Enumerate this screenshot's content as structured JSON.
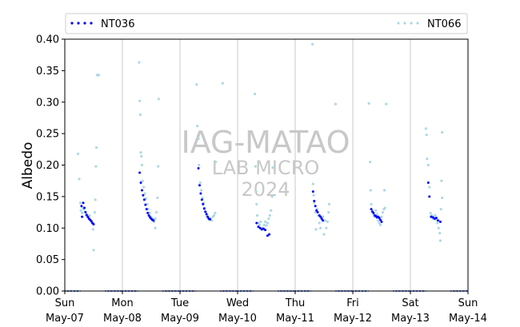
{
  "chart_data": {
    "type": "scatter",
    "ylabel": "Albedo",
    "ylim": [
      0,
      0.4
    ],
    "yticks": [
      "0.00",
      "0.05",
      "0.10",
      "0.15",
      "0.20",
      "0.25",
      "0.30",
      "0.35",
      "0.40"
    ],
    "xlim": [
      0,
      7
    ],
    "xticks": [
      {
        "day": "Sun",
        "date": "May-07"
      },
      {
        "day": "Mon",
        "date": "May-08"
      },
      {
        "day": "Tue",
        "date": "May-09"
      },
      {
        "day": "Wed",
        "date": "May-10"
      },
      {
        "day": "Thu",
        "date": "May-11"
      },
      {
        "day": "Fri",
        "date": "May-12"
      },
      {
        "day": "Sat",
        "date": "May-13"
      },
      {
        "day": "Sun",
        "date": "May-14"
      }
    ],
    "legend_position": "top",
    "grid": "vertical",
    "watermark": [
      "IAG-MATAO",
      "LAB MICRO",
      "2024"
    ],
    "series": [
      {
        "name": "NT036",
        "color": "#0000ff",
        "marker": "dot",
        "points": [
          [
            0.29,
            0.135
          ],
          [
            0.3,
            0.118
          ],
          [
            0.32,
            0.14
          ],
          [
            0.34,
            0.132
          ],
          [
            0.36,
            0.125
          ],
          [
            0.38,
            0.121
          ],
          [
            0.4,
            0.118
          ],
          [
            0.42,
            0.115
          ],
          [
            0.44,
            0.113
          ],
          [
            0.46,
            0.111
          ],
          [
            0.48,
            0.108
          ],
          [
            0.5,
            0.106
          ],
          [
            1.3,
            0.188
          ],
          [
            1.32,
            0.172
          ],
          [
            1.34,
            0.16
          ],
          [
            1.36,
            0.152
          ],
          [
            1.38,
            0.145
          ],
          [
            1.4,
            0.137
          ],
          [
            1.42,
            0.13
          ],
          [
            1.44,
            0.124
          ],
          [
            1.46,
            0.12
          ],
          [
            1.48,
            0.117
          ],
          [
            1.5,
            0.115
          ],
          [
            1.52,
            0.113
          ],
          [
            1.54,
            0.112
          ],
          [
            2.32,
            0.195
          ],
          [
            2.34,
            0.168
          ],
          [
            2.36,
            0.155
          ],
          [
            2.38,
            0.145
          ],
          [
            2.4,
            0.138
          ],
          [
            2.42,
            0.131
          ],
          [
            2.44,
            0.126
          ],
          [
            2.46,
            0.122
          ],
          [
            2.48,
            0.118
          ],
          [
            2.5,
            0.115
          ],
          [
            2.52,
            0.114
          ],
          [
            3.33,
            0.108
          ],
          [
            3.36,
            0.102
          ],
          [
            3.39,
            0.1
          ],
          [
            3.42,
            0.098
          ],
          [
            3.45,
            0.099
          ],
          [
            3.48,
            0.097
          ],
          [
            3.52,
            0.088
          ],
          [
            3.55,
            0.09
          ],
          [
            4.31,
            0.158
          ],
          [
            4.33,
            0.143
          ],
          [
            4.35,
            0.135
          ],
          [
            4.37,
            0.128
          ],
          [
            4.39,
            0.125
          ],
          [
            4.42,
            0.12
          ],
          [
            4.44,
            0.118
          ],
          [
            4.46,
            0.115
          ],
          [
            4.48,
            0.112
          ],
          [
            5.32,
            0.13
          ],
          [
            5.34,
            0.126
          ],
          [
            5.36,
            0.124
          ],
          [
            5.38,
            0.12
          ],
          [
            5.4,
            0.119
          ],
          [
            5.42,
            0.117
          ],
          [
            5.44,
            0.118
          ],
          [
            5.46,
            0.116
          ],
          [
            5.48,
            0.113
          ],
          [
            5.5,
            0.11
          ],
          [
            6.31,
            0.172
          ],
          [
            6.33,
            0.15
          ],
          [
            6.36,
            0.118
          ],
          [
            6.39,
            0.117
          ],
          [
            6.42,
            0.115
          ],
          [
            6.45,
            0.116
          ],
          [
            6.48,
            0.112
          ],
          [
            6.52,
            0.11
          ]
        ]
      },
      {
        "name": "NT066",
        "color": "#add8e6",
        "marker": "dot",
        "points": [
          [
            0.23,
            0.218
          ],
          [
            0.25,
            0.178
          ],
          [
            0.27,
            0.14
          ],
          [
            0.28,
            0.128
          ],
          [
            0.3,
            0.124
          ],
          [
            0.31,
            0.132
          ],
          [
            0.33,
            0.13
          ],
          [
            0.35,
            0.126
          ],
          [
            0.37,
            0.12
          ],
          [
            0.39,
            0.118
          ],
          [
            0.41,
            0.116
          ],
          [
            0.43,
            0.12
          ],
          [
            0.45,
            0.112
          ],
          [
            0.47,
            0.109
          ],
          [
            0.49,
            0.098
          ],
          [
            0.5,
            0.065
          ],
          [
            0.52,
            0.125
          ],
          [
            0.53,
            0.145
          ],
          [
            0.54,
            0.198
          ],
          [
            0.55,
            0.228
          ],
          [
            0.56,
            0.343
          ],
          [
            0.57,
            0.343
          ],
          [
            0.58,
            0.343
          ],
          [
            0.59,
            0.343
          ],
          [
            1.29,
            0.363
          ],
          [
            1.3,
            0.302
          ],
          [
            1.31,
            0.28
          ],
          [
            1.32,
            0.22
          ],
          [
            1.33,
            0.214
          ],
          [
            1.34,
            0.2
          ],
          [
            1.35,
            0.175
          ],
          [
            1.37,
            0.165
          ],
          [
            1.39,
            0.155
          ],
          [
            1.41,
            0.147
          ],
          [
            1.43,
            0.138
          ],
          [
            1.45,
            0.13
          ],
          [
            1.47,
            0.124
          ],
          [
            1.49,
            0.118
          ],
          [
            1.51,
            0.116
          ],
          [
            1.53,
            0.113
          ],
          [
            1.55,
            0.11
          ],
          [
            1.57,
            0.115
          ],
          [
            1.59,
            0.125
          ],
          [
            1.61,
            0.148
          ],
          [
            1.62,
            0.198
          ],
          [
            1.63,
            0.305
          ],
          [
            1.57,
            0.1
          ],
          [
            2.29,
            0.328
          ],
          [
            2.3,
            0.262
          ],
          [
            2.32,
            0.242
          ],
          [
            2.33,
            0.2
          ],
          [
            2.35,
            0.172
          ],
          [
            2.37,
            0.16
          ],
          [
            2.39,
            0.148
          ],
          [
            2.41,
            0.14
          ],
          [
            2.43,
            0.132
          ],
          [
            2.45,
            0.125
          ],
          [
            2.47,
            0.12
          ],
          [
            2.49,
            0.116
          ],
          [
            2.51,
            0.113
          ],
          [
            2.53,
            0.115
          ],
          [
            2.55,
            0.112
          ],
          [
            2.57,
            0.118
          ],
          [
            2.59,
            0.12
          ],
          [
            2.61,
            0.124
          ],
          [
            2.62,
            0.205
          ],
          [
            2.74,
            0.33
          ],
          [
            3.3,
            0.313
          ],
          [
            3.31,
            0.198
          ],
          [
            3.32,
            0.158
          ],
          [
            3.33,
            0.138
          ],
          [
            3.34,
            0.12
          ],
          [
            3.36,
            0.108
          ],
          [
            3.38,
            0.105
          ],
          [
            3.4,
            0.11
          ],
          [
            3.42,
            0.1
          ],
          [
            3.44,
            0.098
          ],
          [
            3.46,
            0.105
          ],
          [
            3.48,
            0.11
          ],
          [
            3.5,
            0.104
          ],
          [
            3.52,
            0.108
          ],
          [
            3.54,
            0.115
          ],
          [
            3.56,
            0.12
          ],
          [
            3.58,
            0.128
          ],
          [
            3.6,
            0.15
          ],
          [
            3.61,
            0.196
          ],
          [
            4.3,
            0.392
          ],
          [
            4.31,
            0.17
          ],
          [
            4.32,
            0.152
          ],
          [
            4.33,
            0.14
          ],
          [
            4.35,
            0.125
          ],
          [
            4.36,
            0.098
          ],
          [
            4.38,
            0.13
          ],
          [
            4.4,
            0.12
          ],
          [
            4.42,
            0.108
          ],
          [
            4.44,
            0.1
          ],
          [
            4.46,
            0.115
          ],
          [
            4.48,
            0.118
          ],
          [
            4.5,
            0.09
          ],
          [
            4.52,
            0.112
          ],
          [
            4.54,
            0.1
          ],
          [
            4.56,
            0.11
          ],
          [
            4.58,
            0.125
          ],
          [
            4.59,
            0.138
          ],
          [
            4.7,
            0.297
          ],
          [
            5.28,
            0.298
          ],
          [
            5.3,
            0.205
          ],
          [
            5.31,
            0.16
          ],
          [
            5.32,
            0.138
          ],
          [
            5.34,
            0.128
          ],
          [
            5.36,
            0.122
          ],
          [
            5.38,
            0.118
          ],
          [
            5.4,
            0.128
          ],
          [
            5.42,
            0.122
          ],
          [
            5.44,
            0.112
          ],
          [
            5.46,
            0.108
          ],
          [
            5.48,
            0.105
          ],
          [
            5.5,
            0.118
          ],
          [
            5.52,
            0.125
          ],
          [
            5.54,
            0.13
          ],
          [
            5.55,
            0.16
          ],
          [
            5.56,
            0.132
          ],
          [
            5.58,
            0.297
          ],
          [
            6.27,
            0.258
          ],
          [
            6.28,
            0.248
          ],
          [
            6.29,
            0.21
          ],
          [
            6.31,
            0.2
          ],
          [
            6.33,
            0.165
          ],
          [
            6.35,
            0.124
          ],
          [
            6.37,
            0.12
          ],
          [
            6.39,
            0.115
          ],
          [
            6.41,
            0.118
          ],
          [
            6.43,
            0.12
          ],
          [
            6.45,
            0.113
          ],
          [
            6.47,
            0.108
          ],
          [
            6.49,
            0.1
          ],
          [
            6.51,
            0.092
          ],
          [
            6.52,
            0.08
          ],
          [
            6.53,
            0.13
          ],
          [
            6.54,
            0.175
          ],
          [
            6.55,
            0.252
          ],
          [
            6.55,
            0.148
          ]
        ]
      }
    ]
  }
}
